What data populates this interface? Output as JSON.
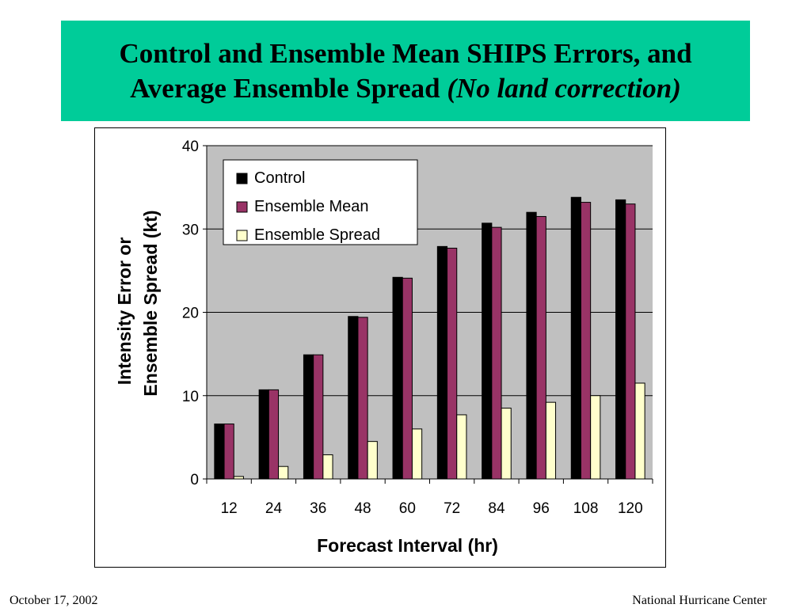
{
  "slide": {
    "title_line1": "Control and Ensemble Mean SHIPS Errors, and",
    "title_line2": "Average Ensemble Spread",
    "title_italic": "(No land correction)",
    "footer_date": "October 17, 2002",
    "footer_org": "National Hurricane Center"
  },
  "chart_data": {
    "type": "bar",
    "title": "",
    "xlabel": "Forecast Interval (hr)",
    "ylabel_line1": "Intensity Error or",
    "ylabel_line2": "Ensemble Spread (kt)",
    "categories": [
      "12",
      "24",
      "36",
      "48",
      "60",
      "72",
      "84",
      "96",
      "108",
      "120"
    ],
    "yticks": [
      "0",
      "10",
      "20",
      "30",
      "40"
    ],
    "ylim": [
      0,
      40
    ],
    "grid": true,
    "legend_position": "top-left",
    "series": [
      {
        "name": "Control",
        "color": "#000000",
        "values": [
          6.6,
          10.7,
          14.9,
          19.5,
          24.2,
          27.9,
          30.7,
          32.0,
          33.8,
          33.5
        ]
      },
      {
        "name": "Ensemble Mean",
        "color": "#993366",
        "values": [
          6.6,
          10.7,
          14.9,
          19.4,
          24.1,
          27.7,
          30.2,
          31.5,
          33.2,
          33.0
        ]
      },
      {
        "name": "Ensemble Spread",
        "color": "#ffffcc",
        "values": [
          0.3,
          1.5,
          2.9,
          4.5,
          6.0,
          7.7,
          8.5,
          9.2,
          10.0,
          11.5
        ]
      }
    ]
  }
}
